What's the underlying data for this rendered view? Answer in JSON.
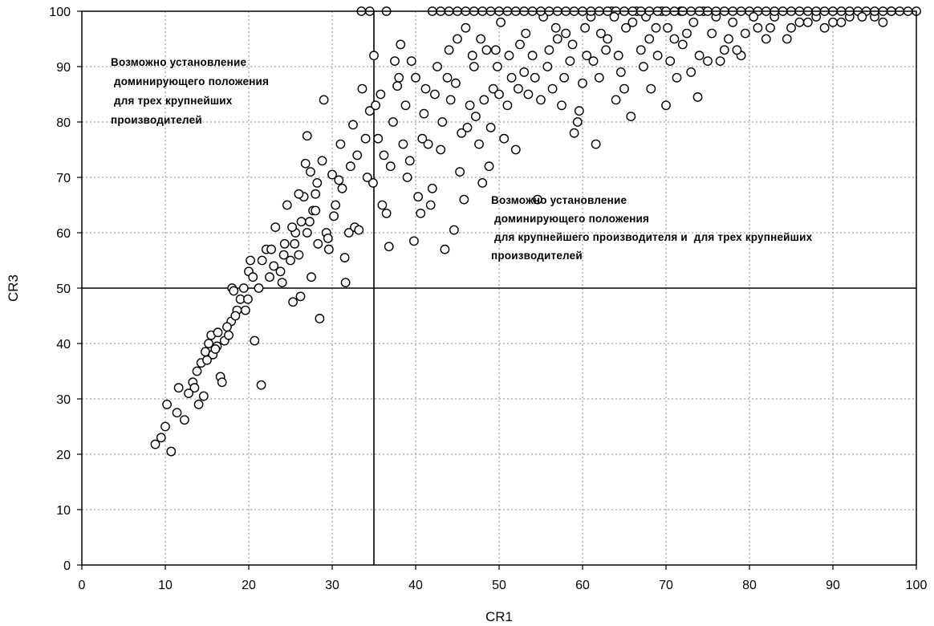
{
  "chart_data": {
    "type": "scatter",
    "xlabel": "CR1",
    "ylabel": "CR3",
    "xlim": [
      0,
      100
    ],
    "ylim": [
      0,
      100
    ],
    "x_ticks": [
      "0",
      "10",
      "20",
      "30",
      "40",
      "50",
      "60",
      "70",
      "80",
      "90",
      "100"
    ],
    "y_ticks": [
      "0",
      "10",
      "20",
      "30",
      "40",
      "50",
      "60",
      "70",
      "80",
      "90",
      "100"
    ],
    "grid": true,
    "reference_lines": {
      "vertical_x": 35,
      "horizontal_y": 50
    },
    "annotations": [
      {
        "lines": [
          "Возможно установление",
          " доминирующего положения",
          " для трех крупнейших",
          "производителей"
        ]
      },
      {
        "lines": [
          "Возможно установление",
          " доминирующего положения",
          " для крупнейшего производителя и  для трех крупнейших",
          "производителей"
        ]
      }
    ],
    "series": [
      {
        "marker": "circle-open",
        "color": "#000000",
        "points": [
          [
            8.8,
            21.8
          ],
          [
            9.5,
            23
          ],
          [
            10,
            25
          ],
          [
            10.2,
            29
          ],
          [
            10.7,
            20.5
          ],
          [
            11.4,
            27.5
          ],
          [
            11.6,
            32
          ],
          [
            12.3,
            26.2
          ],
          [
            13.3,
            33
          ],
          [
            13.5,
            32
          ],
          [
            14,
            29
          ],
          [
            14.3,
            36.5
          ],
          [
            14.6,
            30.5
          ],
          [
            14.8,
            38.5
          ],
          [
            15.2,
            40
          ],
          [
            15.5,
            41.5
          ],
          [
            15.7,
            38
          ],
          [
            16.2,
            39.5
          ],
          [
            16.3,
            42
          ],
          [
            16.6,
            34
          ],
          [
            16.8,
            33
          ],
          [
            17.1,
            40.5
          ],
          [
            17.6,
            41.5
          ],
          [
            17.9,
            44
          ],
          [
            18,
            50
          ],
          [
            18.2,
            49.5
          ],
          [
            18.6,
            46
          ],
          [
            19,
            48
          ],
          [
            19.4,
            50
          ],
          [
            19.9,
            48
          ],
          [
            20,
            53
          ],
          [
            20.2,
            55
          ],
          [
            20.5,
            52
          ],
          [
            20.7,
            40.5
          ],
          [
            21.5,
            32.5
          ],
          [
            21.6,
            55
          ],
          [
            22.1,
            57
          ],
          [
            22.7,
            57
          ],
          [
            23.2,
            61
          ],
          [
            23.8,
            53
          ],
          [
            24.3,
            58
          ],
          [
            24.6,
            65
          ],
          [
            25,
            55
          ],
          [
            25.3,
            47.5
          ],
          [
            25.6,
            60
          ],
          [
            26,
            56
          ],
          [
            26.2,
            48.5
          ],
          [
            26.6,
            66.5
          ],
          [
            26.8,
            72.5
          ],
          [
            27,
            77.5
          ],
          [
            27.3,
            62
          ],
          [
            27.5,
            52
          ],
          [
            27.7,
            64
          ],
          [
            28,
            67
          ],
          [
            28.3,
            58
          ],
          [
            28.5,
            44.5
          ],
          [
            28.8,
            73
          ],
          [
            29,
            84
          ],
          [
            29.3,
            60
          ],
          [
            29.6,
            57
          ],
          [
            30,
            70.5
          ],
          [
            30.4,
            65
          ],
          [
            30.8,
            69.5
          ],
          [
            31,
            76
          ],
          [
            31.5,
            55.5
          ],
          [
            31.6,
            51
          ],
          [
            32,
            60
          ],
          [
            32.5,
            79.5
          ],
          [
            32.7,
            61
          ],
          [
            33.2,
            60.5
          ],
          [
            33.6,
            86
          ],
          [
            34,
            77
          ],
          [
            34.5,
            82
          ],
          [
            34.9,
            69
          ],
          [
            35.2,
            83
          ],
          [
            35.5,
            77
          ],
          [
            36,
            65
          ],
          [
            36.5,
            63.5
          ],
          [
            36.8,
            57.5
          ],
          [
            37,
            72
          ],
          [
            37.3,
            80
          ],
          [
            37.8,
            86.5
          ],
          [
            38,
            88
          ],
          [
            38.5,
            76
          ],
          [
            39,
            70
          ],
          [
            39.5,
            91
          ],
          [
            39.8,
            58.5
          ],
          [
            40.3,
            66.5
          ],
          [
            40.6,
            63.5
          ],
          [
            41,
            81.5
          ],
          [
            41.5,
            76
          ],
          [
            42,
            68
          ],
          [
            42.3,
            85
          ],
          [
            43,
            75
          ],
          [
            43.5,
            57
          ],
          [
            43.8,
            88
          ],
          [
            44.2,
            84
          ],
          [
            44.6,
            60.5
          ],
          [
            45,
            95
          ],
          [
            45.5,
            78
          ],
          [
            45.8,
            66
          ],
          [
            46.2,
            79
          ],
          [
            46.8,
            92
          ],
          [
            47.2,
            81
          ],
          [
            47.6,
            76
          ],
          [
            48,
            69
          ],
          [
            48.5,
            93
          ],
          [
            48.8,
            72
          ],
          [
            49.3,
            86
          ],
          [
            49.8,
            90
          ],
          [
            50.2,
            98
          ],
          [
            50.6,
            77
          ],
          [
            51,
            83
          ],
          [
            51.5,
            88
          ],
          [
            52,
            75
          ],
          [
            52.5,
            94
          ],
          [
            53,
            89
          ],
          [
            53.5,
            85
          ],
          [
            54,
            92
          ],
          [
            54.6,
            66
          ],
          [
            55.3,
            99
          ],
          [
            55.8,
            90
          ],
          [
            56.4,
            86
          ],
          [
            57,
            95
          ],
          [
            57.5,
            83
          ],
          [
            58,
            96
          ],
          [
            58.5,
            91
          ],
          [
            59,
            78
          ],
          [
            59.4,
            80
          ],
          [
            60,
            87
          ],
          [
            60.5,
            92
          ],
          [
            61,
            99
          ],
          [
            61.6,
            76
          ],
          [
            62.2,
            96
          ],
          [
            62.8,
            93
          ],
          [
            63.5,
            100
          ],
          [
            64,
            84
          ],
          [
            64.6,
            89
          ],
          [
            65.2,
            97
          ],
          [
            65.8,
            81
          ],
          [
            66.5,
            100
          ],
          [
            67,
            93
          ],
          [
            67.6,
            99
          ],
          [
            68.2,
            86
          ],
          [
            68.8,
            97
          ],
          [
            69.5,
            100
          ],
          [
            70,
            83
          ],
          [
            70.5,
            91
          ],
          [
            71,
            95
          ],
          [
            71.8,
            100
          ],
          [
            72.5,
            96
          ],
          [
            73,
            89
          ],
          [
            73.8,
            84.5
          ],
          [
            74.5,
            100
          ],
          [
            75,
            91
          ],
          [
            76,
            99
          ],
          [
            77,
            93
          ],
          [
            78,
            98
          ],
          [
            79,
            92
          ],
          [
            80,
            100
          ],
          [
            81,
            97
          ],
          [
            82,
            95
          ],
          [
            83,
            99
          ],
          [
            84,
            100
          ],
          [
            85,
            97
          ],
          [
            86,
            98
          ],
          [
            87,
            100
          ],
          [
            88,
            99
          ],
          [
            89,
            100
          ],
          [
            90,
            98
          ],
          [
            91,
            100
          ],
          [
            92,
            99
          ],
          [
            93,
            100
          ],
          [
            94,
            100
          ],
          [
            95,
            99
          ],
          [
            96,
            100
          ],
          [
            97,
            100
          ],
          [
            98,
            100
          ],
          [
            99,
            100
          ],
          [
            100,
            100
          ],
          [
            33.5,
            100
          ],
          [
            34.5,
            100
          ],
          [
            36.5,
            100
          ],
          [
            42,
            100
          ],
          [
            43,
            100
          ],
          [
            44,
            100
          ],
          [
            45,
            100
          ],
          [
            46,
            100
          ],
          [
            47,
            100
          ],
          [
            48,
            100
          ],
          [
            49,
            100
          ],
          [
            50,
            100
          ],
          [
            51,
            100
          ],
          [
            52,
            100
          ],
          [
            53,
            100
          ],
          [
            54,
            100
          ],
          [
            55,
            100
          ],
          [
            56,
            100
          ],
          [
            57,
            100
          ],
          [
            58,
            100
          ],
          [
            59,
            100
          ],
          [
            60,
            100
          ],
          [
            61,
            100
          ],
          [
            62,
            100
          ],
          [
            63,
            100
          ],
          [
            64,
            100
          ],
          [
            65,
            100
          ],
          [
            66,
            100
          ],
          [
            67,
            100
          ],
          [
            68,
            100
          ],
          [
            69,
            100
          ],
          [
            70,
            100
          ],
          [
            71,
            100
          ],
          [
            72,
            100
          ],
          [
            73,
            100
          ],
          [
            74,
            100
          ],
          [
            75,
            100
          ],
          [
            76,
            100
          ],
          [
            77,
            100
          ],
          [
            78,
            100
          ],
          [
            79,
            100
          ],
          [
            81,
            100
          ],
          [
            82,
            100
          ],
          [
            83,
            100
          ],
          [
            85,
            100
          ],
          [
            86,
            100
          ],
          [
            88,
            100
          ],
          [
            90,
            100
          ],
          [
            92,
            100
          ],
          [
            95,
            100
          ],
          [
            97,
            100
          ],
          [
            35,
            92
          ],
          [
            35.8,
            85
          ],
          [
            36.2,
            74
          ],
          [
            37.5,
            91
          ],
          [
            38.2,
            94
          ],
          [
            38.8,
            83
          ],
          [
            39.3,
            73
          ],
          [
            40,
            88
          ],
          [
            40.8,
            77
          ],
          [
            41.2,
            86
          ],
          [
            41.8,
            65
          ],
          [
            42.6,
            90
          ],
          [
            43.2,
            80
          ],
          [
            44,
            93
          ],
          [
            44.8,
            87
          ],
          [
            45.3,
            71
          ],
          [
            46,
            97
          ],
          [
            46.5,
            83
          ],
          [
            47,
            90
          ],
          [
            47.8,
            95
          ],
          [
            48.2,
            84
          ],
          [
            49,
            79
          ],
          [
            49.6,
            93
          ],
          [
            50,
            85
          ],
          [
            51.2,
            92
          ],
          [
            52.3,
            86
          ],
          [
            53.2,
            96
          ],
          [
            54.3,
            88
          ],
          [
            55,
            84
          ],
          [
            56,
            93
          ],
          [
            56.8,
            97
          ],
          [
            57.8,
            88
          ],
          [
            58.8,
            94
          ],
          [
            59.6,
            82
          ],
          [
            60.3,
            97
          ],
          [
            61.3,
            91
          ],
          [
            62,
            88
          ],
          [
            63,
            95
          ],
          [
            63.8,
            99
          ],
          [
            64.3,
            92
          ],
          [
            65,
            86
          ],
          [
            66,
            98
          ],
          [
            67.3,
            90
          ],
          [
            68,
            95
          ],
          [
            69,
            92
          ],
          [
            70.2,
            97
          ],
          [
            71.3,
            88
          ],
          [
            72,
            94
          ],
          [
            73.3,
            98
          ],
          [
            74,
            92
          ],
          [
            75.5,
            96
          ],
          [
            76.5,
            91
          ],
          [
            77.5,
            95
          ],
          [
            78.5,
            93
          ],
          [
            79.5,
            96
          ],
          [
            80.5,
            99
          ],
          [
            82.5,
            97
          ],
          [
            84.5,
            95
          ],
          [
            87,
            98
          ],
          [
            89,
            97
          ],
          [
            91,
            98
          ],
          [
            93.5,
            99
          ],
          [
            96,
            98
          ],
          [
            23,
            54
          ],
          [
            24,
            51
          ],
          [
            25.5,
            58
          ],
          [
            26.3,
            62
          ],
          [
            27,
            60
          ],
          [
            28,
            64
          ],
          [
            29.5,
            59
          ],
          [
            30.2,
            63
          ],
          [
            31.2,
            68
          ],
          [
            32.2,
            72
          ],
          [
            33,
            74
          ],
          [
            34.2,
            70
          ],
          [
            28.2,
            69
          ],
          [
            27.4,
            71
          ],
          [
            26,
            67
          ],
          [
            25.2,
            61
          ],
          [
            24.2,
            56
          ],
          [
            22.5,
            52
          ],
          [
            21.2,
            50
          ],
          [
            19.6,
            46
          ],
          [
            18.4,
            45
          ],
          [
            17.4,
            43
          ],
          [
            16,
            39
          ],
          [
            15,
            37
          ],
          [
            13.8,
            35
          ],
          [
            12.8,
            31
          ]
        ]
      }
    ]
  }
}
